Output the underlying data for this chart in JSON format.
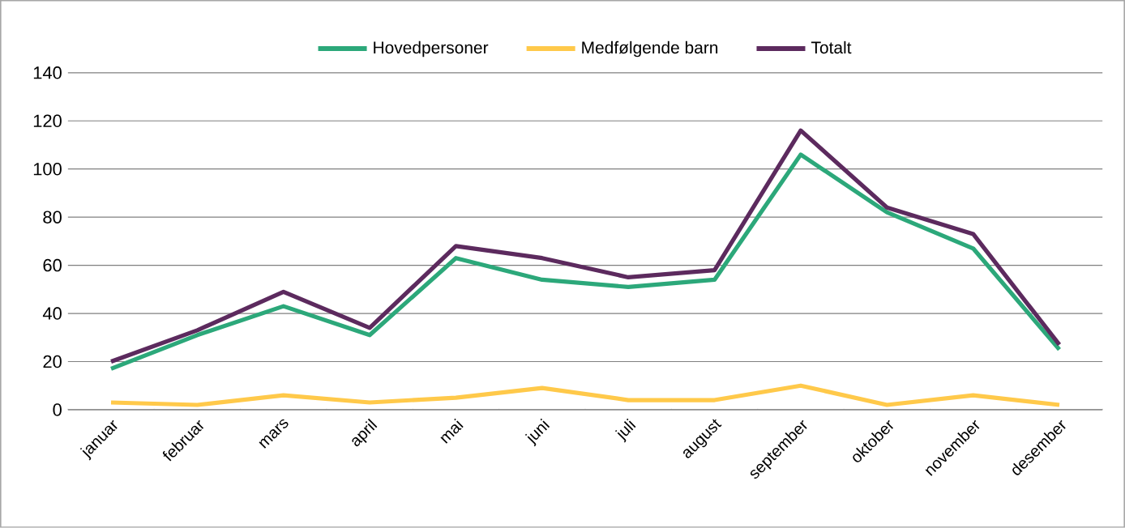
{
  "chart_data": {
    "type": "line",
    "categories": [
      "januar",
      "februar",
      "mars",
      "april",
      "mai",
      "juni",
      "juli",
      "august",
      "september",
      "oktober",
      "november",
      "desember"
    ],
    "series": [
      {
        "name": "Hovedpersoner",
        "color": "#2ca87a",
        "values": [
          17,
          31,
          43,
          31,
          63,
          54,
          51,
          54,
          106,
          82,
          67,
          25
        ]
      },
      {
        "name": "Medfølgende barn",
        "color": "#ffc94a",
        "values": [
          3,
          2,
          6,
          3,
          5,
          9,
          4,
          4,
          10,
          2,
          6,
          2
        ]
      },
      {
        "name": "Totalt",
        "color": "#5c2a5e",
        "values": [
          20,
          33,
          49,
          34,
          68,
          63,
          55,
          58,
          116,
          84,
          73,
          27
        ]
      }
    ],
    "ylim": [
      0,
      140
    ],
    "yticks": [
      0,
      20,
      40,
      60,
      80,
      100,
      120,
      140
    ],
    "grid": "y",
    "legend": "top",
    "marker": "none",
    "line_style": "solid"
  }
}
